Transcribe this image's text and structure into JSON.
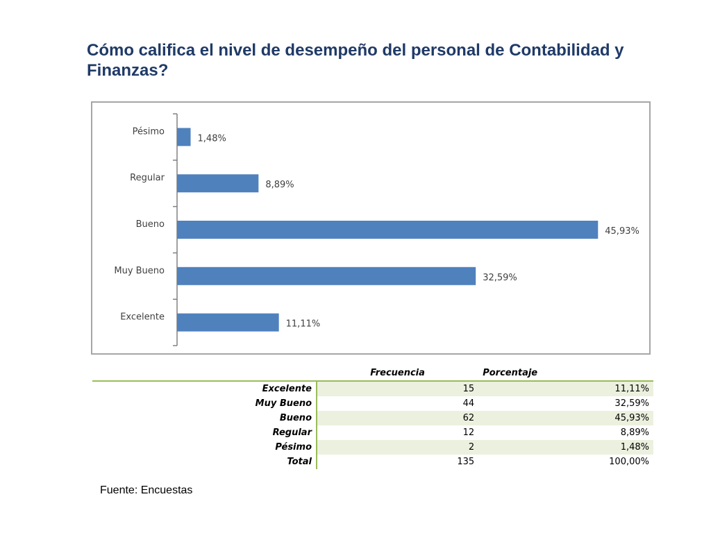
{
  "title": "Cómo califica el nivel de desempeño del personal de Contabilidad y Finanzas?",
  "chart_data": {
    "type": "bar",
    "orientation": "horizontal",
    "categories": [
      "Pésimo",
      "Regular",
      "Bueno",
      "Muy Bueno",
      "Excelente"
    ],
    "values": [
      1.48,
      8.89,
      45.93,
      32.59,
      11.11
    ],
    "value_labels": [
      "1,48%",
      "8,89%",
      "45,93%",
      "32,59%",
      "11,11%"
    ],
    "bar_color": "#4f81bd",
    "xlim": [
      0,
      50
    ],
    "grid": false,
    "legend": "none"
  },
  "table": {
    "headers": [
      "",
      "Frecuencia",
      "Porcentaje"
    ],
    "rows": [
      {
        "label": "Excelente",
        "frecuencia": "15",
        "porcentaje": "11,11%"
      },
      {
        "label": "Muy Bueno",
        "frecuencia": "44",
        "porcentaje": "32,59%"
      },
      {
        "label": "Bueno",
        "frecuencia": "62",
        "porcentaje": "45,93%"
      },
      {
        "label": "Regular",
        "frecuencia": "12",
        "porcentaje": "8,89%"
      },
      {
        "label": "Pésimo",
        "frecuencia": "2",
        "porcentaje": "1,48%"
      },
      {
        "label": "Total",
        "frecuencia": "135",
        "porcentaje": "100,00%"
      }
    ],
    "accent_color": "#9bbb59",
    "shade_color": "#ebf1de"
  },
  "source": "Fuente: Encuestas"
}
